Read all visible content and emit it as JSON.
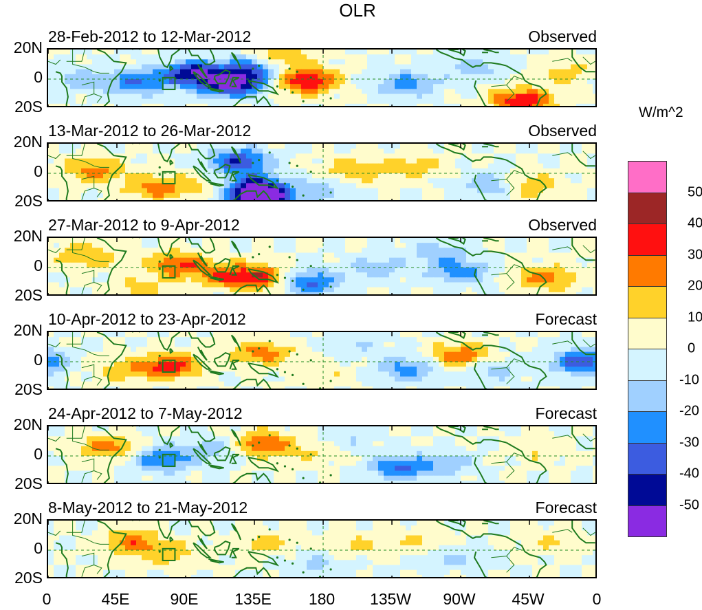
{
  "chart_data": {
    "type": "heatmap",
    "title": "OLR",
    "units": "W/m^2",
    "x_tick_labels": [
      "0",
      "45E",
      "90E",
      "135E",
      "180",
      "135W",
      "90W",
      "45W",
      "0"
    ],
    "y_tick_labels": [
      "20N",
      "0",
      "20S"
    ],
    "lat_range": [
      -20,
      20
    ],
    "lon_range": [
      0,
      360
    ],
    "colorbar": {
      "levels": [
        "50",
        "40",
        "30",
        "20",
        "10",
        "0",
        "-10",
        "-20",
        "-30",
        "-40",
        "-50"
      ],
      "colors": [
        "#ff6ec7",
        "#9c2626",
        "#ff1010",
        "#ff7a00",
        "#ffd22a",
        "#fffccc",
        "#d4f4ff",
        "#a0d0ff",
        "#2090ff",
        "#3c5ce0",
        "#000a96",
        "#8a2be2"
      ]
    },
    "panels": [
      {
        "period": "28-Feb-2012 to 12-Mar-2012",
        "type": "Observed"
      },
      {
        "period": "13-Mar-2012 to 26-Mar-2012",
        "type": "Observed"
      },
      {
        "period": "27-Mar-2012 to 9-Apr-2012",
        "type": "Observed"
      },
      {
        "period": "10-Apr-2012 to 23-Apr-2012",
        "type": "Forecast"
      },
      {
        "period": "24-Apr-2012 to 7-May-2012",
        "type": "Forecast"
      },
      {
        "period": "8-May-2012 to 21-May-2012",
        "type": "Forecast"
      }
    ],
    "anomaly_blobs": [
      [
        {
          "lon": 95,
          "lat": 4,
          "v": -45
        },
        {
          "lon": 120,
          "lat": -3,
          "v": -55
        },
        {
          "lon": 60,
          "lat": -2,
          "v": -30
        },
        {
          "lon": 135,
          "lat": 8,
          "v": -35
        },
        {
          "lon": 170,
          "lat": -1,
          "v": 40
        },
        {
          "lon": 150,
          "lat": 14,
          "v": 25
        },
        {
          "lon": 235,
          "lat": -3,
          "v": -25
        },
        {
          "lon": 310,
          "lat": -15,
          "v": 40
        },
        {
          "lon": 280,
          "lat": 8,
          "v": -15
        },
        {
          "lon": 20,
          "lat": 0,
          "v": -15
        },
        {
          "lon": 340,
          "lat": 4,
          "v": 15
        }
      ],
      [
        {
          "lon": 125,
          "lat": 8,
          "v": -40
        },
        {
          "lon": 135,
          "lat": -10,
          "v": -45
        },
        {
          "lon": 140,
          "lat": -18,
          "v": -55
        },
        {
          "lon": 30,
          "lat": 2,
          "v": 25
        },
        {
          "lon": 70,
          "lat": -10,
          "v": 25
        },
        {
          "lon": 200,
          "lat": 2,
          "v": 20
        },
        {
          "lon": 240,
          "lat": 5,
          "v": 15
        },
        {
          "lon": 315,
          "lat": -8,
          "v": 20
        },
        {
          "lon": 290,
          "lat": -8,
          "v": -20
        },
        {
          "lon": 180,
          "lat": -12,
          "v": -15
        },
        {
          "lon": 100,
          "lat": -8,
          "v": 10
        }
      ],
      [
        {
          "lon": 85,
          "lat": 2,
          "v": 30
        },
        {
          "lon": 140,
          "lat": -7,
          "v": 35
        },
        {
          "lon": 115,
          "lat": -5,
          "v": 25
        },
        {
          "lon": 170,
          "lat": -10,
          "v": -35
        },
        {
          "lon": 25,
          "lat": 8,
          "v": 20
        },
        {
          "lon": 325,
          "lat": -7,
          "v": 25
        },
        {
          "lon": 215,
          "lat": 0,
          "v": -15
        },
        {
          "lon": 270,
          "lat": -3,
          "v": -25
        },
        {
          "lon": 255,
          "lat": 10,
          "v": -15
        },
        {
          "lon": 60,
          "lat": -15,
          "v": 15
        }
      ],
      [
        {
          "lon": 80,
          "lat": -3,
          "v": 35
        },
        {
          "lon": 140,
          "lat": 6,
          "v": 25
        },
        {
          "lon": 270,
          "lat": 4,
          "v": 30
        },
        {
          "lon": 350,
          "lat": 0,
          "v": -40
        },
        {
          "lon": 235,
          "lat": -5,
          "v": -25
        },
        {
          "lon": 290,
          "lat": -5,
          "v": -15
        },
        {
          "lon": 180,
          "lat": -8,
          "v": 10
        },
        {
          "lon": 50,
          "lat": -5,
          "v": 15
        },
        {
          "lon": 200,
          "lat": 12,
          "v": -10
        }
      ],
      [
        {
          "lon": 40,
          "lat": 6,
          "v": 25
        },
        {
          "lon": 140,
          "lat": 8,
          "v": 30
        },
        {
          "lon": 75,
          "lat": -2,
          "v": -30
        },
        {
          "lon": 230,
          "lat": -8,
          "v": -30
        },
        {
          "lon": 110,
          "lat": 5,
          "v": -15
        },
        {
          "lon": 260,
          "lat": -5,
          "v": -15
        },
        {
          "lon": 175,
          "lat": 3,
          "v": 10
        },
        {
          "lon": 320,
          "lat": 4,
          "v": 10
        },
        {
          "lon": 195,
          "lat": 12,
          "v": -10
        }
      ],
      [
        {
          "lon": 55,
          "lat": 5,
          "v": 25
        },
        {
          "lon": 80,
          "lat": -3,
          "v": 15
        },
        {
          "lon": 140,
          "lat": 4,
          "v": 15
        },
        {
          "lon": 200,
          "lat": 4,
          "v": 12
        },
        {
          "lon": 245,
          "lat": 6,
          "v": 12
        },
        {
          "lon": 265,
          "lat": -5,
          "v": -12
        },
        {
          "lon": 175,
          "lat": -10,
          "v": -12
        },
        {
          "lon": 330,
          "lat": 6,
          "v": 10
        }
      ]
    ]
  }
}
